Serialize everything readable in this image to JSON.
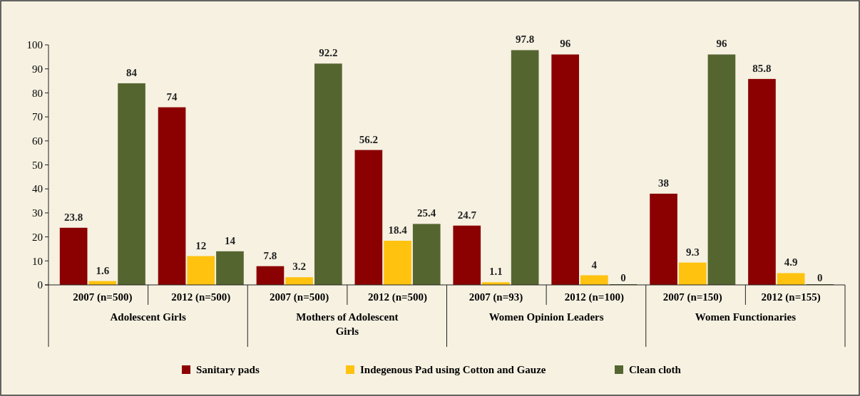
{
  "chart_data": {
    "type": "bar",
    "categories": [
      "2007 (n=500)",
      "2012 (n=500)",
      "2007 (n=500)",
      "2012 (n=500)",
      "2007 (n=93)",
      "2012 (n=100)",
      "2007 (n=150)",
      "2012 (n=155)"
    ],
    "series": [
      {
        "name": "Sanitary pads",
        "color": "#8b0000",
        "values": [
          23.8,
          74,
          7.8,
          56.2,
          24.7,
          96,
          38,
          85.8
        ]
      },
      {
        "name": "Indegenous Pad using Cotton and Gauze",
        "color": "#ffc20e",
        "values": [
          1.6,
          12,
          3.2,
          18.4,
          1.1,
          4,
          9.3,
          4.9
        ]
      },
      {
        "name": "Clean cloth",
        "color": "#556530",
        "values": [
          84,
          14,
          92.2,
          25.4,
          97.8,
          0,
          96,
          0
        ]
      }
    ],
    "annotations": [
      "Adolescent Girls",
      "Mothers of Adolescent Girls",
      "Women Opinion Leaders",
      "Women Functionaries"
    ],
    "ylim": [
      0,
      100
    ],
    "yticks": [
      0,
      10,
      20,
      30,
      40,
      50,
      60,
      70,
      80,
      90,
      100
    ],
    "data_labels": true,
    "legend": "bottom",
    "grid": false
  }
}
